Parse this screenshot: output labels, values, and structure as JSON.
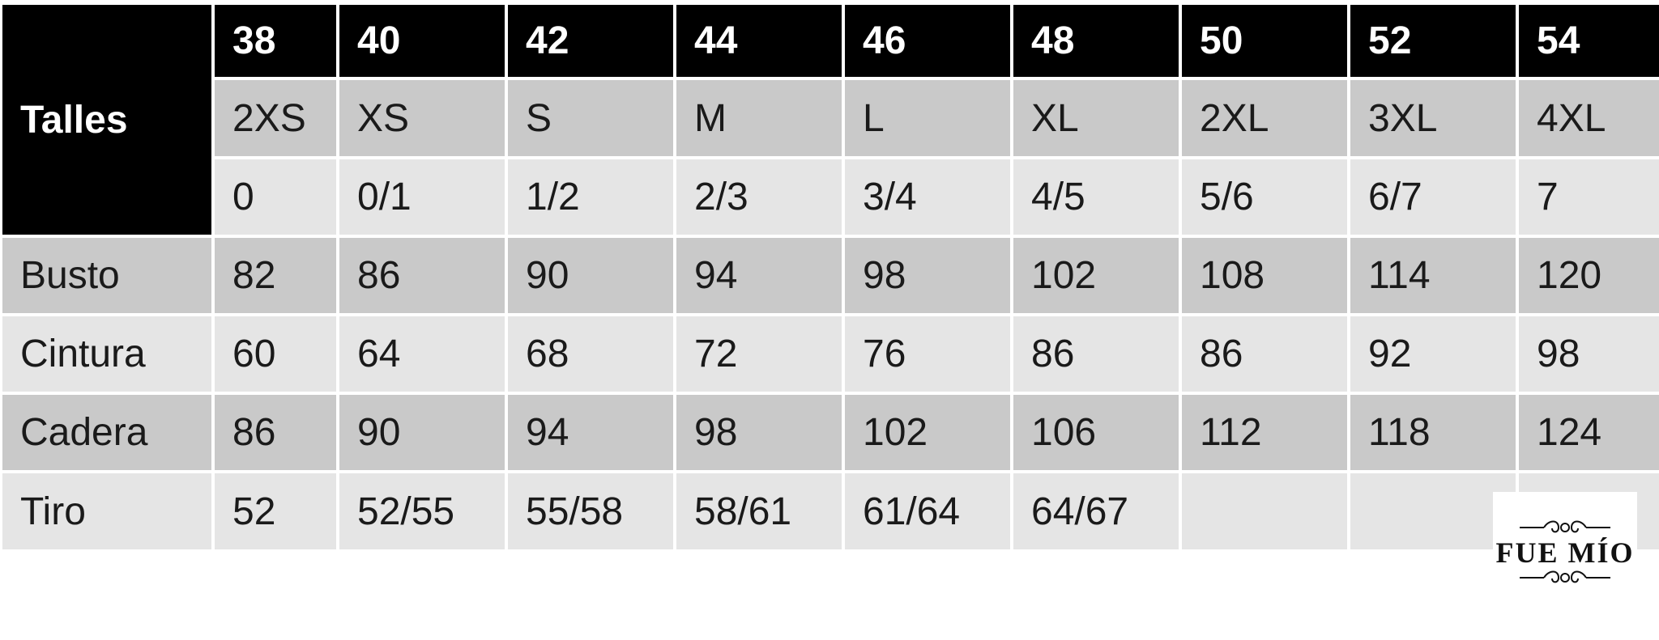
{
  "table": {
    "corner_label": "Talles",
    "sizes_numeric": [
      "38",
      "40",
      "42",
      "44",
      "46",
      "48",
      "50",
      "52",
      "54"
    ],
    "sizes_letter": [
      "2XS",
      "XS",
      "S",
      "M",
      "L",
      "XL",
      "2XL",
      "3XL",
      "4XL"
    ],
    "sizes_alt": [
      "0",
      "0/1",
      "1/2",
      "2/3",
      "3/4",
      "4/5",
      "5/6",
      "6/7",
      "7"
    ],
    "rows": [
      {
        "label": "Busto",
        "values": [
          "82",
          "86",
          "90",
          "94",
          "98",
          "102",
          "108",
          "114",
          "120"
        ]
      },
      {
        "label": "Cintura",
        "values": [
          "60",
          "64",
          "68",
          "72",
          "76",
          "86",
          "86",
          "92",
          "98"
        ]
      },
      {
        "label": "Cadera",
        "values": [
          "86",
          "90",
          "94",
          "98",
          "102",
          "106",
          "112",
          "118",
          "124"
        ]
      },
      {
        "label": "Tiro",
        "values": [
          "52",
          "52/55",
          "55/58",
          "58/61",
          "61/64",
          "64/67",
          "",
          "",
          ""
        ]
      }
    ]
  },
  "logo": {
    "text": "FUE MÍO"
  },
  "colors": {
    "header_bg": "#000000",
    "band_dark": "#c9c9c9",
    "band_light": "#e5e5e5"
  }
}
